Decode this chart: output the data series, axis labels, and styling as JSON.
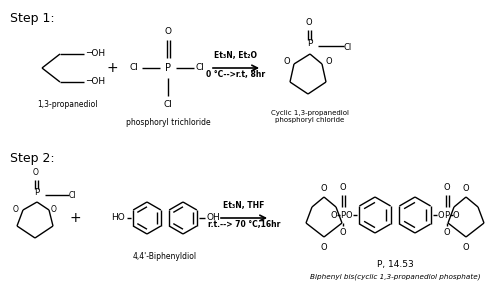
{
  "background_color": "#ffffff",
  "step1_label": "Step 1:",
  "step2_label": "Step 2:",
  "step1_cond1": "Et₃N, Et₂O",
  "step1_cond2": "0 °C-->r.t, 8hr",
  "step2_cond1": "Et₃N, THF",
  "step2_cond2": "r.t.--> 70 °C,16hr",
  "compound1_name": "1,3-propanediol",
  "compound2_name": "phosphoryl trichloride",
  "compound3_name": "Cyclic 1,3-propanediol\nphosphoryl chloride",
  "compound4_name": "4,4'-Biphenyldiol",
  "product_info": "P, 14.53",
  "compound5_name": "Biphenyl bis(cyclic 1,3-propanediol phosphate)",
  "text_color": "#000000",
  "line_color": "#000000",
  "figsize": [
    5.02,
    2.99
  ],
  "dpi": 100
}
